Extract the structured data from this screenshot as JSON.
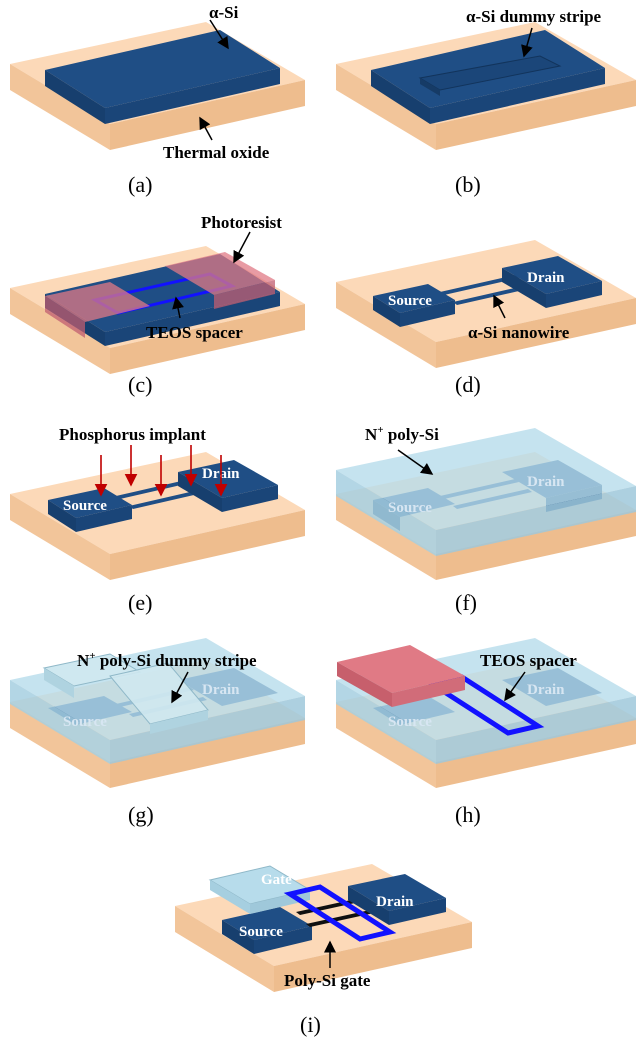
{
  "panels": {
    "a": {
      "caption": "(a)",
      "label_asi": "α-Si",
      "label_oxide": "Thermal oxide"
    },
    "b": {
      "caption": "(b)",
      "label_dummy": "α-Si dummy stripe"
    },
    "c": {
      "caption": "(c)",
      "label_photoresist": "Photoresist",
      "label_teos": "TEOS spacer"
    },
    "d": {
      "caption": "(d)",
      "label_drain": "Drain",
      "label_source": "Source",
      "label_nanowire": "α-Si nanowire"
    },
    "e": {
      "caption": "(e)",
      "label_implant": "Phosphorus implant",
      "label_drain": "Drain",
      "label_source": "Source"
    },
    "f": {
      "caption": "(f)",
      "label_npoly_base": "N",
      "label_npoly_sup": "+",
      "label_npoly_rest": " poly-Si",
      "label_drain": "Drain",
      "label_source": "Source"
    },
    "g": {
      "caption": "(g)",
      "label_dummy_base": "N",
      "label_dummy_sup": "+",
      "label_dummy_rest": " poly-Si dummy stripe",
      "label_drain": "Drain",
      "label_source": "Source"
    },
    "h": {
      "caption": "(h)",
      "label_teos": "TEOS spacer",
      "label_drain": "Drain",
      "label_source": "Source"
    },
    "i": {
      "caption": "(i)",
      "label_gate": "Gate",
      "label_drain": "Drain",
      "label_source": "Source",
      "label_polygate": "Poly-Si gate"
    }
  },
  "colors": {
    "oxide_top": "#fcd9b8",
    "oxide_side": "#f1c092",
    "silicon": "#1f4e85",
    "photoresist": "#e07a85",
    "teos": "#1212ff",
    "npoly": "#b7dceb",
    "implant": "#c00000"
  }
}
